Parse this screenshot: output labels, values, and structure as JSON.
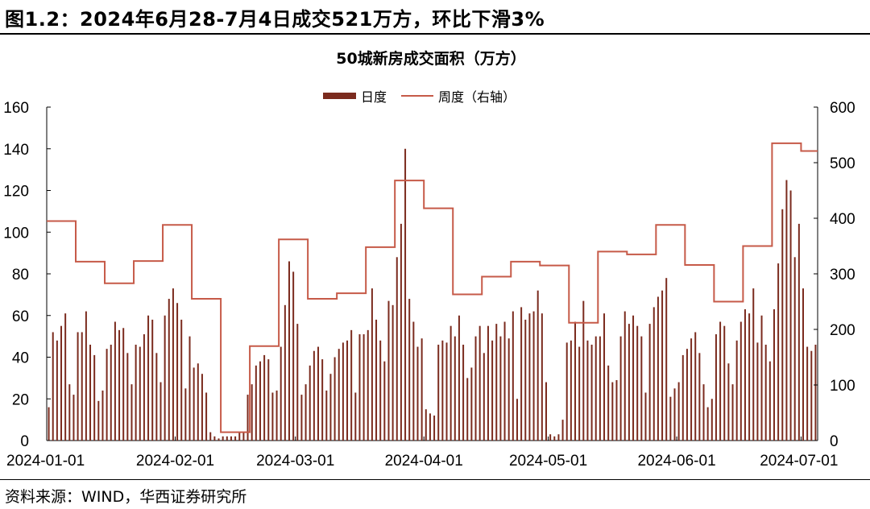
{
  "figure": {
    "title": "图1.2：2024年6月28-7月4日成交521万方，环比下滑3%",
    "source": "资料来源：WIND，华西证券研究所"
  },
  "colors": {
    "daily": "#7b2b1e",
    "weekly": "#c65a48"
  },
  "chart_data": {
    "type": "bar",
    "title": "50城新房成交面积（万方）",
    "xlabel": "",
    "ylabel": "",
    "legend_position": "top-center",
    "grid": false,
    "x_range": [
      "2024-01-01",
      "2024-07-05"
    ],
    "x_ticks": [
      "2024-01-01",
      "2024-02-01",
      "2024-03-01",
      "2024-04-01",
      "2024-05-01",
      "2024-06-01",
      "2024-07-01"
    ],
    "y_left": {
      "min": 0,
      "max": 160,
      "ticks": [
        0,
        20,
        40,
        60,
        80,
        100,
        120,
        140,
        160
      ]
    },
    "y_right": {
      "min": 0,
      "max": 600,
      "ticks": [
        0,
        100,
        200,
        300,
        400,
        500,
        600
      ]
    },
    "series": [
      {
        "name": "日度",
        "type": "bar",
        "axis": "left",
        "start_date": "2024-01-01",
        "values": [
          16,
          52,
          48,
          55,
          61,
          27,
          22,
          52,
          52,
          62,
          46,
          41,
          19,
          24,
          44,
          46,
          57,
          53,
          54,
          42,
          27,
          46,
          45,
          51,
          60,
          58,
          42,
          28,
          60,
          68,
          73,
          66,
          58,
          25,
          50,
          35,
          37,
          32,
          23,
          4,
          2,
          1,
          2,
          2,
          2,
          2,
          4,
          4,
          22,
          27,
          36,
          38,
          41,
          39,
          23,
          24,
          45,
          65,
          86,
          81,
          56,
          22,
          27,
          36,
          43,
          45,
          39,
          24,
          32,
          40,
          44,
          47,
          48,
          53,
          23,
          51,
          51,
          53,
          73,
          58,
          48,
          38,
          67,
          65,
          88,
          104,
          140,
          68,
          57,
          45,
          49,
          15,
          13,
          12,
          46,
          48,
          47,
          55,
          50,
          60,
          46,
          30,
          35,
          50,
          55,
          42,
          55,
          48,
          56,
          50,
          57,
          49,
          62,
          20,
          64,
          58,
          61,
          62,
          72,
          61,
          28,
          3,
          2,
          3,
          10,
          47,
          48,
          57,
          45,
          67,
          48,
          46,
          50,
          50,
          61,
          36,
          28,
          29,
          50,
          62,
          56,
          60,
          55,
          50,
          23,
          56,
          64,
          69,
          72,
          78,
          21,
          25,
          28,
          41,
          44,
          49,
          52,
          42,
          27,
          16,
          20,
          51,
          57,
          55,
          37,
          27,
          48,
          57,
          63,
          61,
          73,
          47,
          60,
          46,
          38,
          63,
          85,
          111,
          125,
          120,
          88,
          104,
          73,
          45,
          43,
          46
        ]
      },
      {
        "name": "周度（右轴）",
        "type": "line",
        "axis": "right",
        "steps": [
          [
            "2024-01-01",
            395
          ],
          [
            "2024-01-08",
            322
          ],
          [
            "2024-01-15",
            283
          ],
          [
            "2024-01-22",
            323
          ],
          [
            "2024-01-29",
            388
          ],
          [
            "2024-02-05",
            255
          ],
          [
            "2024-02-12",
            15
          ],
          [
            "2024-02-19",
            170
          ],
          [
            "2024-02-26",
            362
          ],
          [
            "2024-03-04",
            255
          ],
          [
            "2024-03-11",
            265
          ],
          [
            "2024-03-18",
            348
          ],
          [
            "2024-03-25",
            468
          ],
          [
            "2024-04-01",
            418
          ],
          [
            "2024-04-08",
            263
          ],
          [
            "2024-04-15",
            295
          ],
          [
            "2024-04-22",
            322
          ],
          [
            "2024-04-29",
            315
          ],
          [
            "2024-05-06",
            212
          ],
          [
            "2024-05-13",
            340
          ],
          [
            "2024-05-20",
            335
          ],
          [
            "2024-05-27",
            388
          ],
          [
            "2024-06-03",
            316
          ],
          [
            "2024-06-10",
            250
          ],
          [
            "2024-06-17",
            350
          ],
          [
            "2024-06-24",
            535
          ],
          [
            "2024-07-01",
            521
          ],
          [
            "2024-07-05",
            521
          ]
        ]
      }
    ]
  }
}
